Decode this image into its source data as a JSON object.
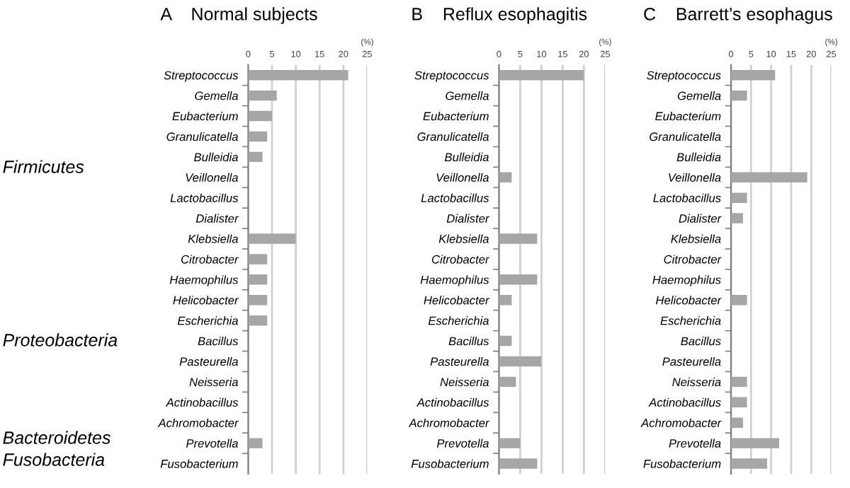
{
  "chart_data": [
    {
      "type": "bar",
      "orientation": "horizontal",
      "title": "A    Normal subjects",
      "xlabel": "(%)",
      "categories": [
        "Streptococcus",
        "Gemella",
        "Eubacterium",
        "Granulicatella",
        "Bulleidia",
        "Veillonella",
        "Lactobacillus",
        "Dialister",
        "Klebsiella",
        "Citrobacter",
        "Haemophilus",
        "Helicobacter",
        "Escherichia",
        "Bacillus",
        "Pasteurella",
        "Neisseria",
        "Actinobacillus",
        "Achromobacter",
        "Prevotella",
        "Fusobacterium"
      ],
      "values": [
        21,
        6,
        5,
        4,
        3,
        0,
        0,
        0,
        10,
        4,
        4,
        4,
        4,
        0,
        0,
        0,
        0,
        0,
        3,
        0
      ],
      "color": "#a6a6a6",
      "xlim": [
        0,
        25
      ],
      "xticks": [
        0,
        5,
        10,
        15,
        20,
        25
      ],
      "grid": "x",
      "annotations": [
        "Firmicutes",
        "Proteobacteria",
        "Bacteroidetes",
        "Fusobacteria"
      ]
    },
    {
      "type": "bar",
      "orientation": "horizontal",
      "title": "B    Reflux esophagitis",
      "xlabel": "(%)",
      "categories": [
        "Streptococcus",
        "Gemella",
        "Eubacterium",
        "Granulicatella",
        "Bulleidia",
        "Veillonella",
        "Lactobacillus",
        "Dialister",
        "Klebsiella",
        "Citrobacter",
        "Haemophilus",
        "Helicobacter",
        "Escherichia",
        "Bacillus",
        "Pasteurella",
        "Neisseria",
        "Actinobacillus",
        "Achromobacter",
        "Prevotella",
        "Fusobacterium"
      ],
      "values": [
        20,
        0,
        0,
        0,
        0,
        3,
        0,
        0,
        9,
        0,
        9,
        3,
        0,
        3,
        10,
        4,
        0,
        0,
        5,
        9
      ],
      "color": "#a6a6a6",
      "xlim": [
        0,
        25
      ],
      "xticks": [
        0,
        5,
        10,
        15,
        20,
        25
      ],
      "grid": "x"
    },
    {
      "type": "bar",
      "orientation": "horizontal",
      "title": "C    Barrett’s esophagus",
      "xlabel": "(%)",
      "categories": [
        "Streptococcus",
        "Gemella",
        "Eubacterium",
        "Granulicatella",
        "Bulleidia",
        "Veillonella",
        "Lactobacillus",
        "Dialister",
        "Klebsiella",
        "Citrobacter",
        "Haemophilus",
        "Helicobacter",
        "Escherichia",
        "Bacillus",
        "Pasteurella",
        "Neisseria",
        "Actinobacillus",
        "Achromobacter",
        "Prevotella",
        "Fusobacterium"
      ],
      "values": [
        11,
        4,
        0,
        0,
        0,
        19,
        4,
        3,
        0,
        0,
        0,
        4,
        0,
        0,
        0,
        4,
        4,
        3,
        12,
        9
      ],
      "color": "#a6a6a6",
      "xlim": [
        0,
        25
      ],
      "xticks": [
        0,
        5,
        10,
        15,
        20,
        25
      ],
      "grid": "x"
    }
  ]
}
